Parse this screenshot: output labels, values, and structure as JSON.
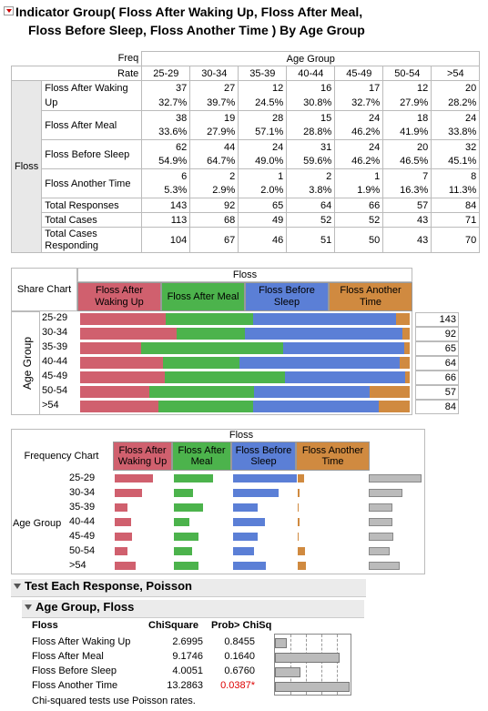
{
  "header": {
    "title_line1": "Indicator Group(   Floss After Waking Up,   Floss After Meal,",
    "title_line2": "Floss Before Sleep,   Floss Another Time   ) By Age Group"
  },
  "crosstab": {
    "freq_label": "Freq",
    "rate_label": "Rate",
    "group_label": "Age Group",
    "row_group": "Floss",
    "columns": [
      "25-29",
      "30-34",
      "35-39",
      "40-44",
      "45-49",
      "50-54",
      ">54"
    ],
    "rows": [
      {
        "label": "Floss After Waking Up",
        "freq": [
          "37",
          "27",
          "12",
          "16",
          "17",
          "12",
          "20"
        ],
        "rate": [
          "32.7%",
          "39.7%",
          "24.5%",
          "30.8%",
          "32.7%",
          "27.9%",
          "28.2%"
        ]
      },
      {
        "label": "Floss After Meal",
        "freq": [
          "38",
          "19",
          "28",
          "15",
          "24",
          "18",
          "24"
        ],
        "rate": [
          "33.6%",
          "27.9%",
          "57.1%",
          "28.8%",
          "46.2%",
          "41.9%",
          "33.8%"
        ]
      },
      {
        "label": "Floss Before Sleep",
        "freq": [
          "62",
          "44",
          "24",
          "31",
          "24",
          "20",
          "32"
        ],
        "rate": [
          "54.9%",
          "64.7%",
          "49.0%",
          "59.6%",
          "46.2%",
          "46.5%",
          "45.1%"
        ]
      },
      {
        "label": "Floss Another Time",
        "freq": [
          "6",
          "2",
          "1",
          "2",
          "1",
          "7",
          "8"
        ],
        "rate": [
          "5.3%",
          "2.9%",
          "2.0%",
          "3.8%",
          "1.9%",
          "16.3%",
          "11.3%"
        ]
      }
    ],
    "totals": [
      {
        "label": "Total Responses",
        "values": [
          "143",
          "92",
          "65",
          "64",
          "66",
          "57",
          "84"
        ]
      },
      {
        "label": "Total Cases",
        "values": [
          "113",
          "68",
          "49",
          "52",
          "52",
          "43",
          "71"
        ]
      },
      {
        "label": "Total Cases Responding",
        "values": [
          "104",
          "67",
          "46",
          "51",
          "50",
          "43",
          "70"
        ]
      }
    ]
  },
  "share_chart": {
    "title": "Share Chart",
    "group_title": "Floss",
    "axis_label": "Age Group",
    "responses": [
      {
        "label": "Floss After Waking Up",
        "color": "#d0606e"
      },
      {
        "label": "Floss After Meal",
        "color": "#4cb34c"
      },
      {
        "label": "Floss Before Sleep",
        "color": "#5b7fd6"
      },
      {
        "label": "Floss Another Time",
        "color": "#d08a40"
      }
    ],
    "groups": [
      "25-29",
      "30-34",
      "35-39",
      "40-44",
      "45-49",
      "50-54",
      ">54"
    ],
    "totals": [
      "143",
      "92",
      "65",
      "64",
      "66",
      "57",
      "84"
    ]
  },
  "freq_chart": {
    "title": "Frequency Chart",
    "group_title": "Floss",
    "axis_label": "Age Group"
  },
  "tests": {
    "section_title": "Test Each Response, Poisson",
    "sub_title": "Age Group, Floss",
    "columns": [
      "Floss",
      "ChiSquare",
      "Prob> ChiSq"
    ],
    "rows": [
      {
        "name": "Floss After Waking Up",
        "chisq": "2.6995",
        "prob": "0.8455",
        "p": 0.8455
      },
      {
        "name": "Floss After Meal",
        "chisq": "9.1746",
        "prob": "0.1640",
        "p": 0.164
      },
      {
        "name": "Floss Before Sleep",
        "chisq": "4.0051",
        "prob": "0.6760",
        "p": 0.676
      },
      {
        "name": "Floss Another Time",
        "chisq": "13.2863",
        "prob": "0.0387*",
        "p": 0.0387
      }
    ],
    "note": "Chi-squared tests use Poisson rates."
  }
}
